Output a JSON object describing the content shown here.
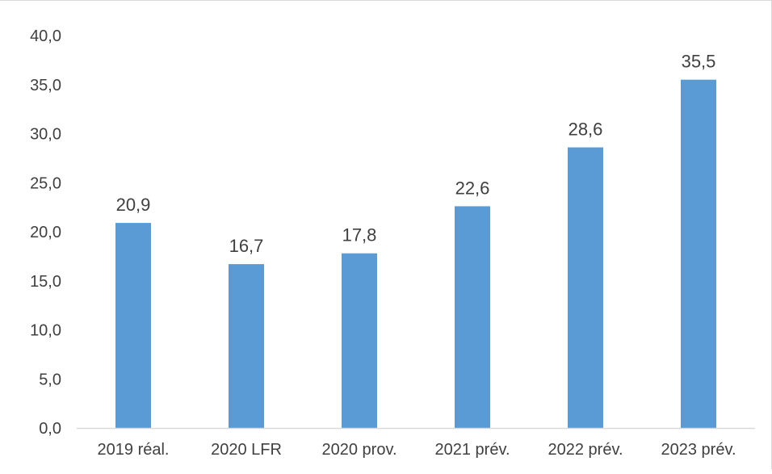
{
  "chart_data": {
    "type": "bar",
    "categories": [
      "2019 réal.",
      "2020 LFR",
      "2020 prov.",
      "2021 prév.",
      "2022 prév.",
      "2023 prév."
    ],
    "values": [
      20.9,
      16.7,
      17.8,
      22.6,
      28.6,
      35.5
    ],
    "value_labels": [
      "20,9",
      "16,7",
      "17,8",
      "22,6",
      "28,6",
      "35,5"
    ],
    "ylim": [
      0,
      40
    ],
    "yticks": [
      0,
      5,
      10,
      15,
      20,
      25,
      30,
      35,
      40
    ],
    "ytick_labels": [
      "0,0",
      "5,0",
      "10,0",
      "15,0",
      "20,0",
      "25,0",
      "30,0",
      "35,0",
      "40,0"
    ],
    "title": "",
    "xlabel": "",
    "ylabel": "",
    "grid": false,
    "legend": "none",
    "bar_color": "#5B9BD5",
    "axis_color": "#d9d9d9",
    "text_color": "#404040"
  }
}
